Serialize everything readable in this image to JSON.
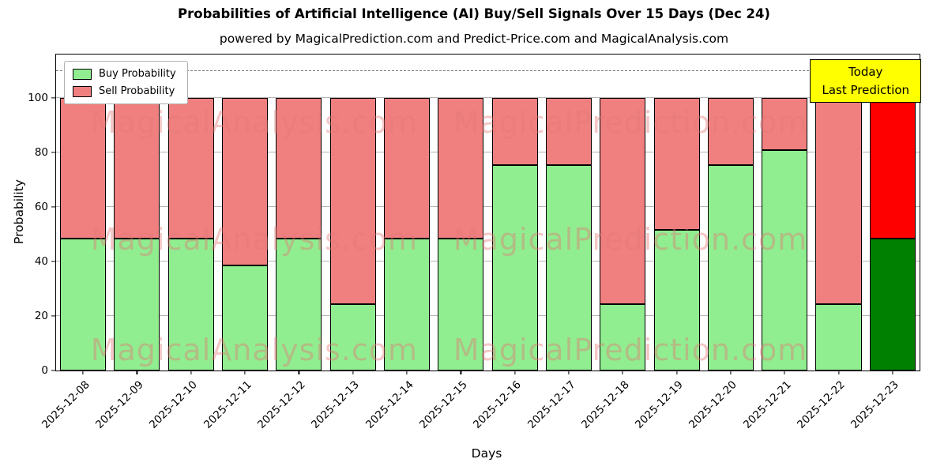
{
  "chart_data": {
    "type": "bar",
    "stacked": true,
    "title": "Probabilities of Artificial Intelligence (AI) Buy/Sell Signals Over 15 Days (Dec 24)",
    "subtitle": "powered by MagicalPrediction.com and Predict-Price.com and MagicalAnalysis.com",
    "xlabel": "Days",
    "ylabel": "Probability",
    "categories": [
      "2025-12-08",
      "2025-12-09",
      "2025-12-10",
      "2025-12-11",
      "2025-12-12",
      "2025-12-13",
      "2025-12-14",
      "2025-12-15",
      "2025-12-16",
      "2025-12-17",
      "2025-12-18",
      "2025-12-19",
      "2025-12-20",
      "2025-12-21",
      "2025-12-22",
      "2025-12-23"
    ],
    "series": [
      {
        "name": "Buy Probability",
        "color": "#90ee90",
        "values": [
          48.5,
          48.5,
          48.5,
          38.5,
          48.5,
          24.5,
          48.5,
          48.5,
          75.5,
          75.5,
          24.5,
          51.5,
          75.5,
          81,
          24.5,
          48.5
        ]
      },
      {
        "name": "Sell Probability",
        "color": "#f08080",
        "values": [
          51.5,
          51.5,
          51.5,
          61.5,
          51.5,
          75.5,
          51.5,
          51.5,
          24.5,
          24.5,
          75.5,
          48.5,
          24.5,
          19,
          75.5,
          51.5
        ]
      }
    ],
    "today_bar": {
      "index": 15,
      "buy_color": "#008000",
      "sell_color": "#ff0000"
    },
    "ylim": [
      0,
      116
    ],
    "yticks": [
      0,
      20,
      40,
      60,
      80,
      100
    ],
    "dashed_line_y": 110,
    "grid": "horizontal",
    "legend": {
      "position": "top-left"
    },
    "annotation": {
      "line1": "Today",
      "line2": "Last Prediction",
      "bg_color": "#ffff00"
    },
    "watermark_left": "MagicalAnalysis.com",
    "watermark_right": "MagicalPrediction.com"
  }
}
